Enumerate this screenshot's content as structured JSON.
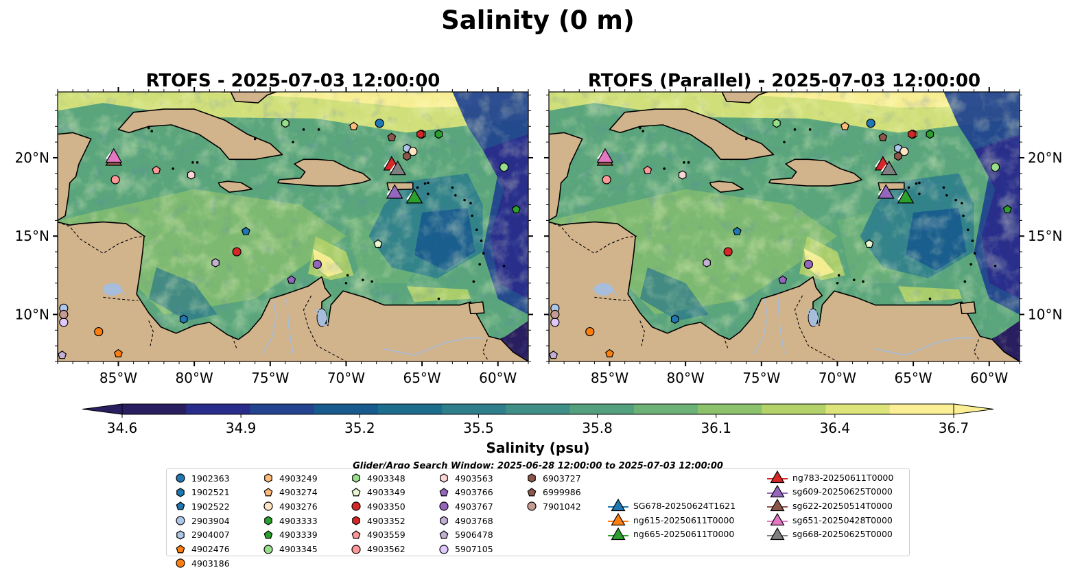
{
  "figure": {
    "title": "Salinity (0 m)",
    "panels": [
      {
        "title": "RTOFS - 2025-07-03 12:00:00"
      },
      {
        "title": "RTOFS (Parallel) - 2025-07-03 12:00:00"
      }
    ],
    "colorbar": {
      "label": "Salinity (psu)",
      "ticks": [
        "34.6",
        "34.9",
        "35.2",
        "35.5",
        "35.8",
        "36.1",
        "36.4",
        "36.7"
      ],
      "min": 34.6,
      "max": 36.7,
      "extend": "both",
      "colormap": [
        "#291e5f",
        "#2a2c8b",
        "#22448f",
        "#175a8d",
        "#1d6d8d",
        "#2e7e8c",
        "#3f8f88",
        "#53a07f",
        "#6cb276",
        "#8cc26c",
        "#b3d269",
        "#dde57a",
        "#fbef96"
      ]
    },
    "legend_title": "Glider/Argo Search Window: 2025-06-28 12:00:00 to 2025-07-03 12:00:00"
  },
  "chart_data": {
    "type": "scatter",
    "map": {
      "lon_range": [
        -89,
        -58
      ],
      "lat_range": [
        7,
        24.2
      ],
      "lon_ticks": [
        "85°W",
        "80°W",
        "75°W",
        "70°W",
        "65°W",
        "60°W"
      ],
      "lat_ticks": [
        "10°N",
        "15°N",
        "20°N"
      ],
      "land_color": "#d2b48c",
      "river_color": "#a6bddb"
    },
    "floats": [
      {
        "id": "1902363",
        "shape": "circle",
        "color": "#1f77b4",
        "lon": -67.8,
        "lat": 22.2
      },
      {
        "id": "1902521",
        "shape": "hexagon",
        "color": "#1f77b4",
        "lon": -80.7,
        "lat": 9.7
      },
      {
        "id": "1902522",
        "shape": "pentagon",
        "color": "#1f77b4",
        "lon": -76.6,
        "lat": 15.3
      },
      {
        "id": "2903904",
        "shape": "circle",
        "color": "#aec7e8",
        "lon": -88.6,
        "lat": 10.4
      },
      {
        "id": "2904007",
        "shape": "hexagon",
        "color": "#aec7e8",
        "lon": -66.0,
        "lat": 20.6
      },
      {
        "id": "4902476",
        "shape": "pentagon",
        "color": "#ff7f0e",
        "lon": -85.0,
        "lat": 7.5
      },
      {
        "id": "4903186",
        "shape": "circle",
        "color": "#ff7f0e",
        "lon": -86.3,
        "lat": 8.9
      },
      {
        "id": "4903249",
        "shape": "hexagon",
        "color": "#ffbb78",
        "lon": -65.0,
        "lat": 21.5
      },
      {
        "id": "4903274",
        "shape": "pentagon",
        "color": "#ffbb78",
        "lon": -69.5,
        "lat": 22.0
      },
      {
        "id": "4903276",
        "shape": "circle",
        "color": "#ffe4c4",
        "lon": -65.6,
        "lat": 20.4
      },
      {
        "id": "4903333",
        "shape": "hexagon",
        "color": "#2ca02c",
        "lon": -63.9,
        "lat": 21.5
      },
      {
        "id": "4903339",
        "shape": "pentagon",
        "color": "#2ca02c",
        "lon": -58.8,
        "lat": 16.7
      },
      {
        "id": "4903345",
        "shape": "circle",
        "color": "#98df8a",
        "lon": -59.6,
        "lat": 19.4
      },
      {
        "id": "4903348",
        "shape": "hexagon",
        "color": "#98df8a",
        "lon": -74.0,
        "lat": 22.2
      },
      {
        "id": "4903349",
        "shape": "pentagon",
        "color": "#e6f7d0",
        "lon": -67.9,
        "lat": 14.5
      },
      {
        "id": "4903350",
        "shape": "circle",
        "color": "#d62728",
        "lon": -77.2,
        "lat": 14.0
      },
      {
        "id": "4903352",
        "shape": "hexagon",
        "color": "#d62728",
        "lon": -65.1,
        "lat": 21.5
      },
      {
        "id": "4903559",
        "shape": "pentagon",
        "color": "#ff9896",
        "lon": -82.5,
        "lat": 19.2
      },
      {
        "id": "4903562",
        "shape": "circle",
        "color": "#ff9896",
        "lon": -85.2,
        "lat": 18.6
      },
      {
        "id": "4903563",
        "shape": "hexagon",
        "color": "#ffd6d6",
        "lon": -80.2,
        "lat": 18.9
      },
      {
        "id": "4903766",
        "shape": "pentagon",
        "color": "#9467bd",
        "lon": -73.6,
        "lat": 12.2
      },
      {
        "id": "4903767",
        "shape": "circle",
        "color": "#9467bd",
        "lon": -71.9,
        "lat": 13.2
      },
      {
        "id": "4903768",
        "shape": "hexagon",
        "color": "#c5b0d5",
        "lon": -78.6,
        "lat": 13.3
      },
      {
        "id": "5906478",
        "shape": "pentagon",
        "color": "#c5b0d5",
        "lon": -88.7,
        "lat": 7.4
      },
      {
        "id": "5907105",
        "shape": "circle",
        "color": "#e0c8ff",
        "lon": -88.6,
        "lat": 9.5
      },
      {
        "id": "6903727",
        "shape": "hexagon",
        "color": "#8c564b",
        "lon": -66.0,
        "lat": 20.1
      },
      {
        "id": "6999986",
        "shape": "pentagon",
        "color": "#8c564b",
        "lon": -67.0,
        "lat": 21.3
      },
      {
        "id": "7901042",
        "shape": "circle",
        "color": "#c49c94",
        "lon": -88.6,
        "lat": 10.0
      }
    ],
    "gliders": [
      {
        "id": "SG678-20250624T1621",
        "color": "#1f77b4",
        "lon": null,
        "lat": null
      },
      {
        "id": "ng615-20250611T0000",
        "color": "#ff7f0e",
        "lon": null,
        "lat": null
      },
      {
        "id": "ng665-20250611T0000",
        "color": "#2ca02c",
        "lon": -65.5,
        "lat": 17.4
      },
      {
        "id": "ng783-20250611T0000",
        "color": "#d62728",
        "lon": -67.0,
        "lat": 19.5
      },
      {
        "id": "sg609-20250625T0000",
        "color": "#9467bd",
        "lon": -66.8,
        "lat": 17.7
      },
      {
        "id": "sg622-20250514T0000",
        "color": "#8c564b",
        "lon": -85.3,
        "lat": 19.8
      },
      {
        "id": "sg651-20250428T0000",
        "color": "#e377c2",
        "lon": -85.3,
        "lat": 20.0
      },
      {
        "id": "sg668-20250625T0000",
        "color": "#7f7f7f",
        "lon": -66.6,
        "lat": 19.2
      }
    ]
  }
}
